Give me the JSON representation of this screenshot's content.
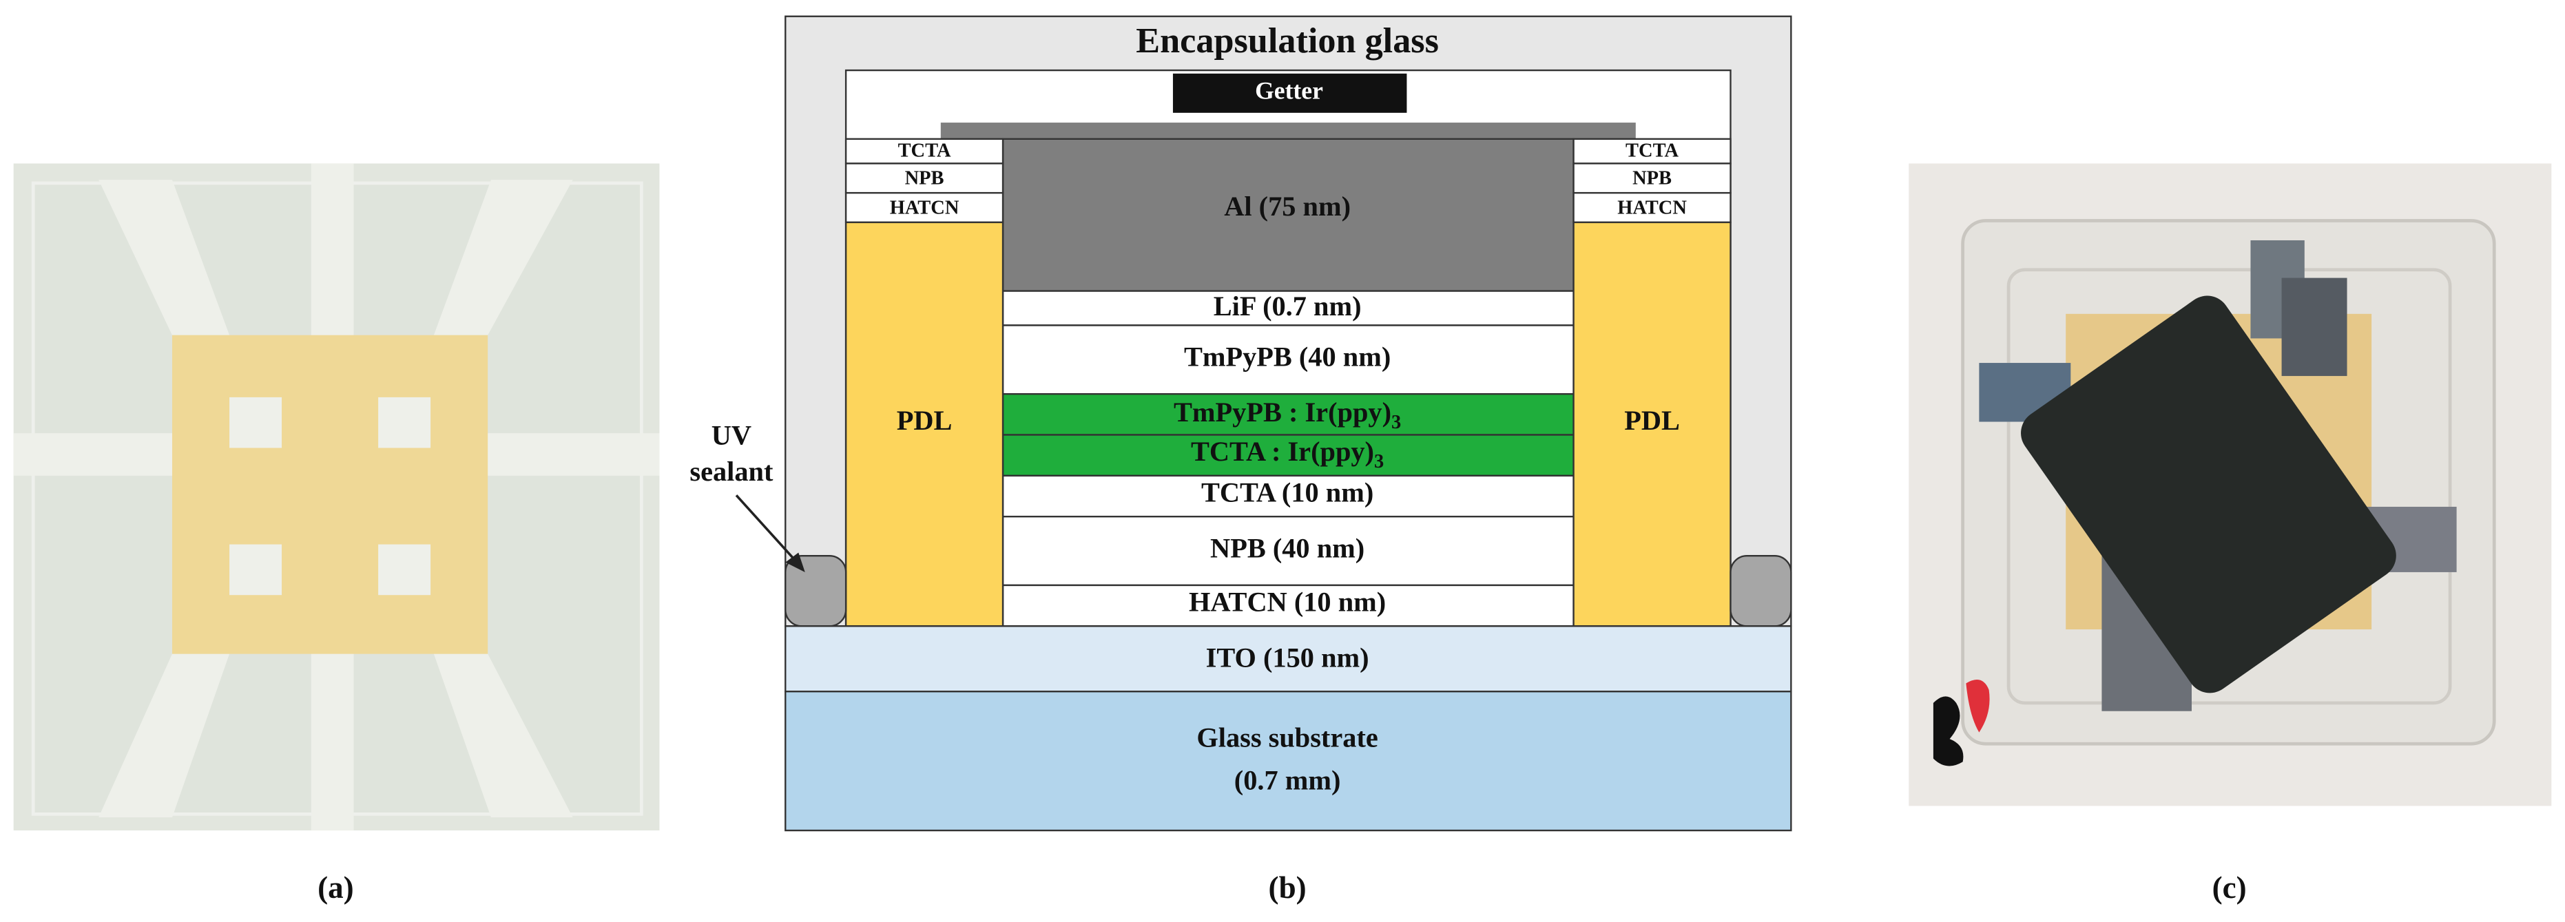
{
  "encapsulation": "Encapsulation glass",
  "getter": "Getter",
  "left_stack": [
    "TCTA",
    "NPB",
    "HATCN"
  ],
  "right_stack": [
    "TCTA",
    "NPB",
    "HATCN"
  ],
  "pdl": [
    "PDL",
    "PDL"
  ],
  "upper_layers": [
    "Al (75 nm)",
    "LiF (0.7 nm)",
    "TmPyPB (40 nm)"
  ],
  "emissive_layers": [
    {
      "text": "TmPyPB : Ir(ppy)",
      "subscript": "3"
    },
    {
      "text": "TCTA : Ir(ppy)",
      "subscript": "3"
    }
  ],
  "lower_layers": [
    "TCTA (10 nm)",
    "NPB (40 nm)",
    "HATCN (10 nm)",
    "ITO (150 nm)"
  ],
  "substrate": [
    "Glass substrate",
    "(0.7 mm)"
  ],
  "sealant": [
    "UV",
    "sealant"
  ],
  "panels": [
    "(a)",
    "(b)",
    "(c)"
  ]
}
